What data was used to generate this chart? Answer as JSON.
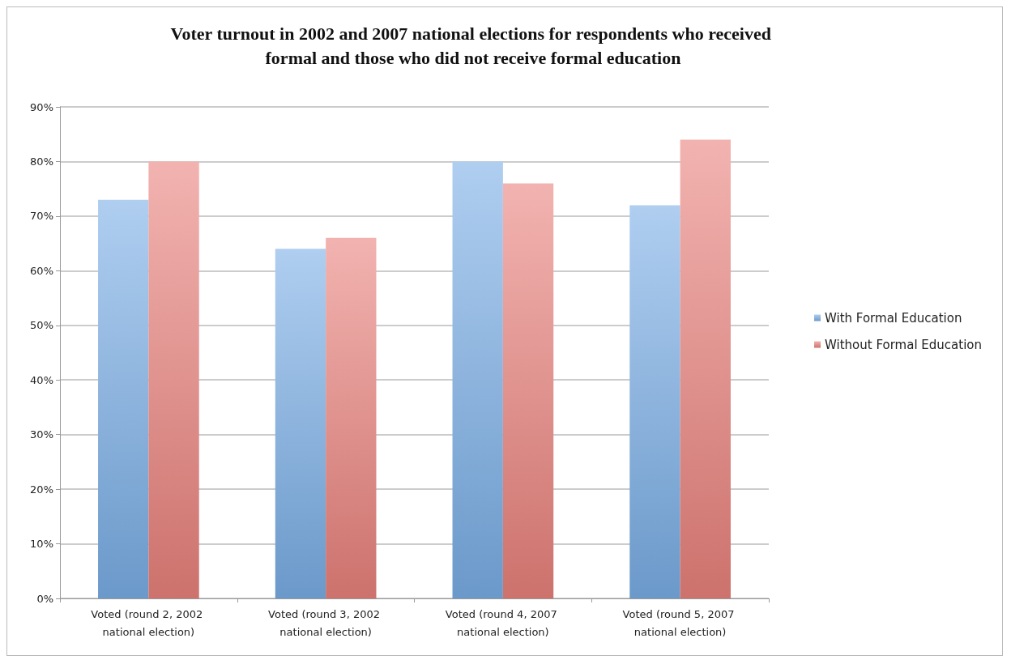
{
  "chart_data": {
    "type": "bar",
    "title": "Voter turnout in 2002 and 2007 national elections for respondents who received formal and those who did not receive formal education",
    "categories": [
      "Voted (round 2, 2002 national election)",
      "Voted (round 3, 2002 national election)",
      "Voted (round 4, 2007 national election)",
      "Voted (round 5, 2007 national election)"
    ],
    "series": [
      {
        "name": "With Formal Education",
        "color": "#7aaee6",
        "values": [
          73,
          64,
          80,
          72
        ]
      },
      {
        "name": "Without Formal Education",
        "color": "#e9817c",
        "values": [
          80,
          66,
          76,
          84
        ]
      }
    ],
    "ylim": [
      0,
      90
    ],
    "yticks": [
      {
        "value": 0,
        "label": "0%"
      },
      {
        "value": 10,
        "label": "10%"
      },
      {
        "value": 20,
        "label": "20%"
      },
      {
        "value": 30,
        "label": "30%"
      },
      {
        "value": 40,
        "label": "40%"
      },
      {
        "value": 50,
        "label": "50%"
      },
      {
        "value": 60,
        "label": "60%"
      },
      {
        "value": 70,
        "label": "70%"
      },
      {
        "value": 80,
        "label": "80%"
      },
      {
        "value": 90,
        "label": "90%"
      }
    ],
    "grid": "y",
    "legend": "right"
  }
}
